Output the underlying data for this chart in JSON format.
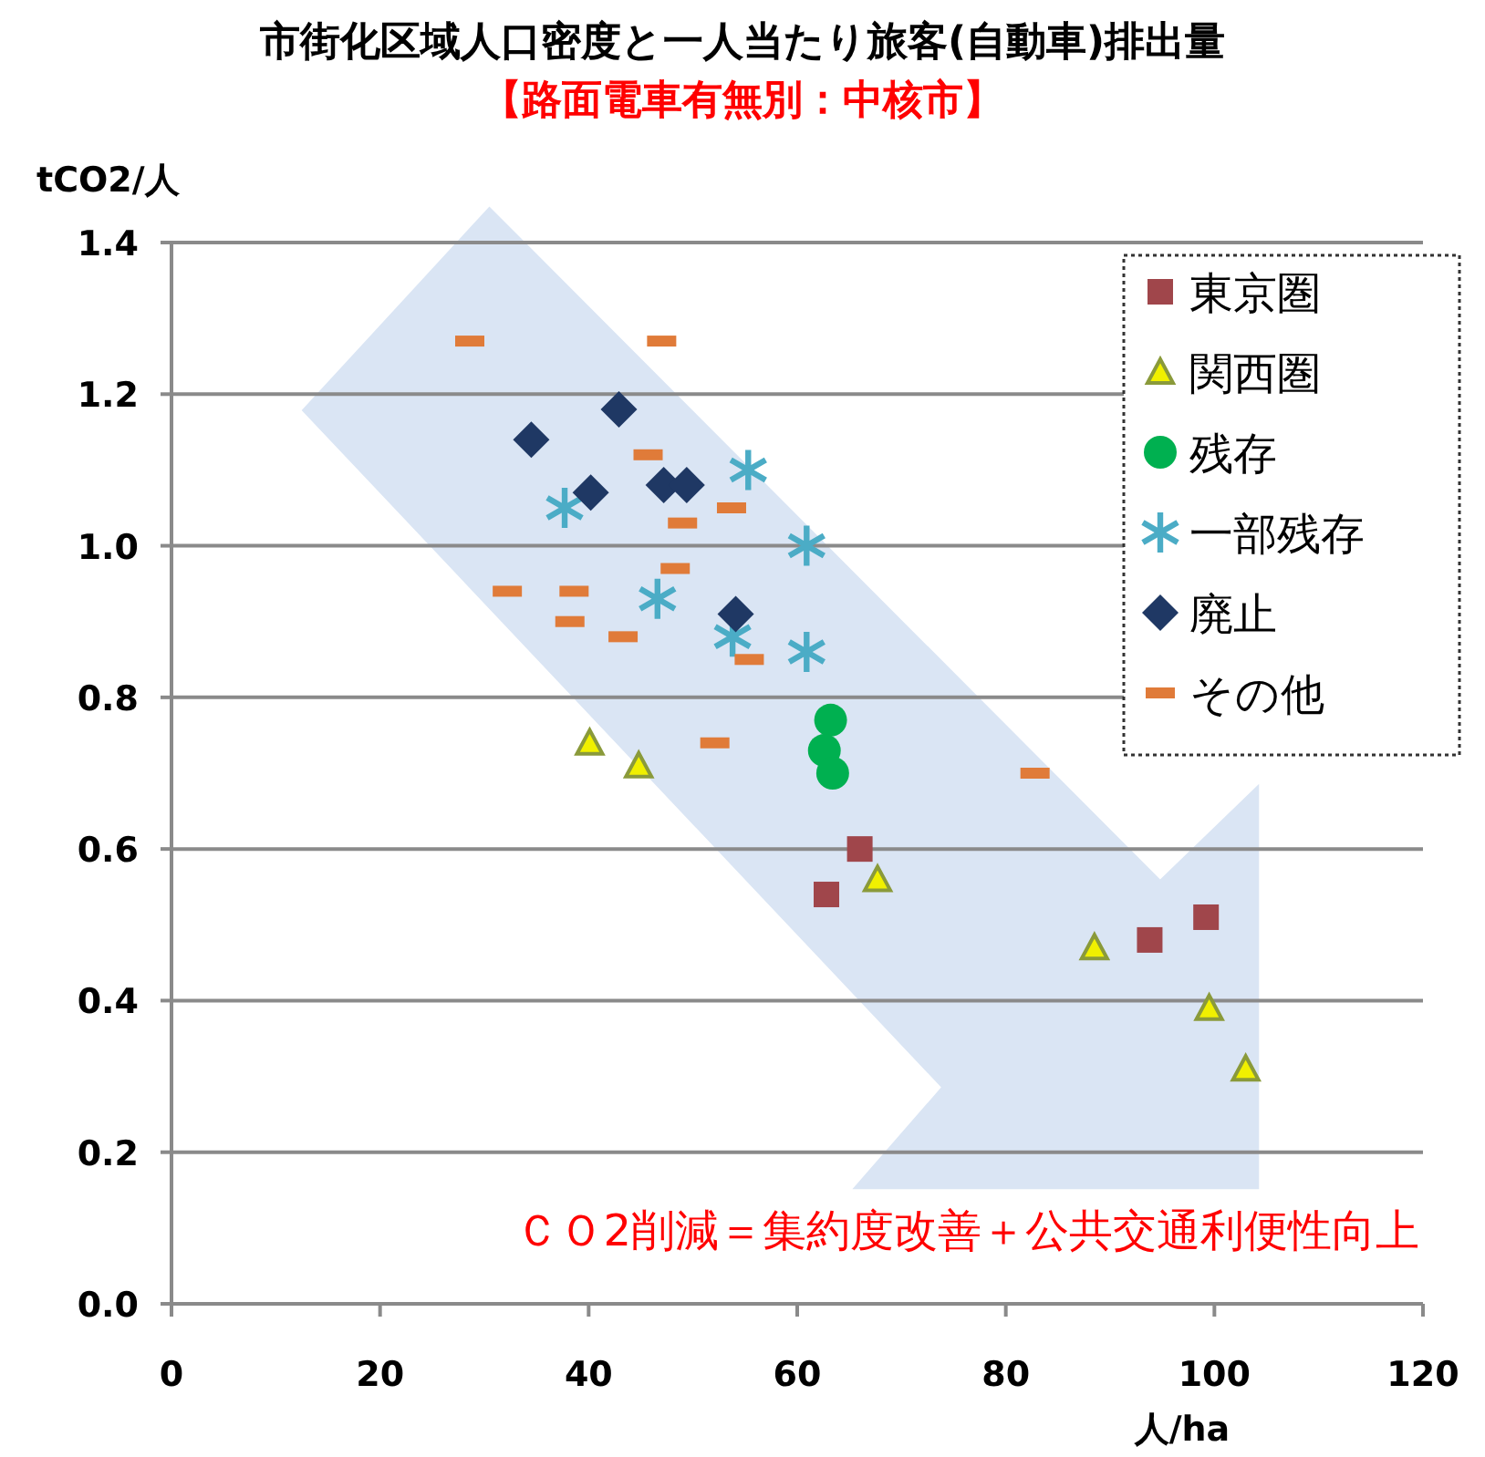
{
  "chart_data": {
    "type": "scatter",
    "title": "市街化区域人口密度と一人当たり旅客(自動車)排出量",
    "subtitle": "【路面電車有無別：中核市】",
    "xlabel": "人/ha",
    "ylabel": "tCO2/人",
    "annotations": [
      "ＣＯ2削減＝集約度改善＋公共交通利便性向上"
    ],
    "xlim": [
      0,
      120
    ],
    "ylim": [
      0,
      1.4
    ],
    "xticks": [
      0,
      20,
      40,
      60,
      80,
      100,
      120
    ],
    "yticks": [
      {
        "value": 0,
        "label": "0.0"
      },
      0.2,
      0.4,
      0.6,
      0.8,
      {
        "value": 1,
        "label": "1.0"
      },
      1.2,
      1.4
    ],
    "grid": "y",
    "legend": "top right",
    "series": [
      {
        "name": "東京圏",
        "color": "#a0464b",
        "marker": "square",
        "x": [
          66,
          62.8,
          93.8,
          99.2
        ],
        "values": [
          0.6,
          0.54,
          0.48,
          0.51
        ]
      },
      {
        "name": "関西圏",
        "color": "#f0f000",
        "marker": "triangle",
        "x": [
          40.1,
          44.8,
          67.7,
          88.5,
          99.5,
          103
        ],
        "values": [
          0.74,
          0.71,
          0.56,
          0.47,
          0.39,
          0.31
        ]
      },
      {
        "name": "残存",
        "color": "#00b050",
        "marker": "circle",
        "x": [
          63.2,
          62.6,
          63.4
        ],
        "values": [
          0.77,
          0.73,
          0.7
        ]
      },
      {
        "name": "一部残存",
        "color": "#4bacc6",
        "marker": "star",
        "x": [
          37.7,
          55.3,
          60.9,
          46.6,
          53.8,
          60.9
        ],
        "values": [
          1.05,
          1.1,
          1.0,
          0.93,
          0.88,
          0.86
        ]
      },
      {
        "name": "廃止",
        "color": "#1f3864",
        "marker": "diamond",
        "x": [
          34.5,
          42.9,
          40.2,
          47.2,
          49.4,
          54.1
        ],
        "values": [
          1.14,
          1.18,
          1.07,
          1.08,
          1.08,
          0.91
        ]
      },
      {
        "name": "その他",
        "color": "#e07b39",
        "x": [
          28.6,
          47,
          45.7,
          53.7,
          49,
          48.3,
          32.2,
          38.6,
          38.2,
          43.3,
          55.4,
          52.1,
          82.8
        ],
        "values": [
          1.27,
          1.27,
          1.12,
          1.05,
          1.03,
          0.97,
          0.94,
          0.94,
          0.9,
          0.88,
          0.85,
          0.74,
          0.7
        ]
      }
    ]
  }
}
